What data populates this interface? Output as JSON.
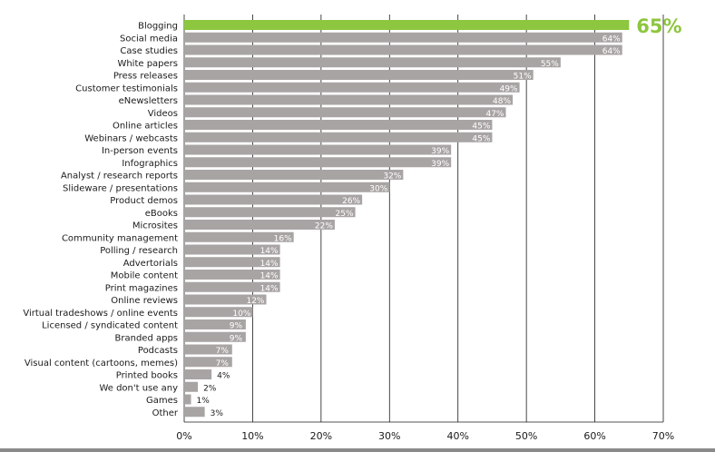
{
  "chart_data": {
    "type": "bar",
    "orientation": "horizontal",
    "categories": [
      "Blogging",
      "Social media",
      "Case studies",
      "White papers",
      "Press releases",
      "Customer testimonials",
      "eNewsletters",
      "Videos",
      "Online articles",
      "Webinars / webcasts",
      "In-person events",
      "Infographics",
      "Analyst / research reports",
      "Slideware / presentations",
      "Product demos",
      "eBooks",
      "Microsites",
      "Community management",
      "Polling / research",
      "Advertorials",
      "Mobile content",
      "Print magazines",
      "Online reviews",
      "Virtual tradeshows / online events",
      "Licensed / syndicated content",
      "Branded apps",
      "Podcasts",
      "Visual content (cartoons, memes)",
      "Printed books",
      "We don't use any",
      "Games",
      "Other"
    ],
    "values": [
      65,
      64,
      64,
      55,
      51,
      49,
      48,
      47,
      45,
      45,
      39,
      39,
      32,
      30,
      26,
      25,
      22,
      16,
      14,
      14,
      14,
      14,
      12,
      10,
      9,
      9,
      7,
      7,
      4,
      2,
      1,
      3
    ],
    "value_labels": [
      "65%",
      "64%",
      "64%",
      "55%",
      "51%",
      "49%",
      "48%",
      "47%",
      "45%",
      "45%",
      "39%",
      "39%",
      "32%",
      "30%",
      "26%",
      "25%",
      "22%",
      "16%",
      "14%",
      "14%",
      "14%",
      "14%",
      "12%",
      "10%",
      "9%",
      "9%",
      "7%",
      "7%",
      "4%",
      "2%",
      "1%",
      "3%"
    ],
    "xlim": [
      0,
      70
    ],
    "x_ticks": [
      "0%",
      "10%",
      "20%",
      "30%",
      "40%",
      "50%",
      "60%",
      "70%"
    ],
    "highlight_index": 0,
    "grid": true,
    "colors": {
      "bar": "#a9a4a4",
      "highlight": "#8dc63f",
      "grid": "#1a1a1a",
      "axis": "#1a1a1a"
    }
  }
}
